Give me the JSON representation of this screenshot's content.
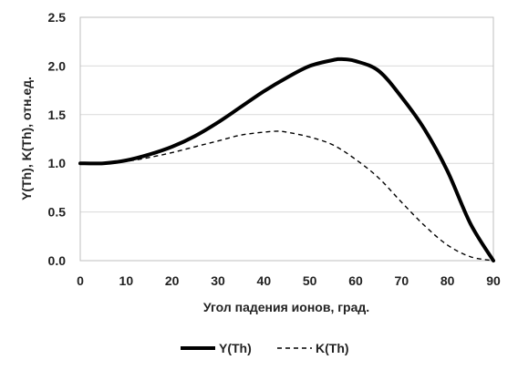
{
  "chart_data": {
    "type": "line",
    "title": "",
    "xlabel": "Угол падения ионов, град.",
    "ylabel": "Y(Th), K(Th), отн.ед.",
    "xlim": [
      0,
      90
    ],
    "ylim": [
      0,
      2.5
    ],
    "x_ticks": [
      "0",
      "10",
      "20",
      "30",
      "40",
      "50",
      "60",
      "70",
      "80",
      "90"
    ],
    "y_ticks": [
      "0.0",
      "0.5",
      "1.0",
      "1.5",
      "2.0",
      "2.5"
    ],
    "grid": "horizontal",
    "legend": "bottom",
    "series": [
      {
        "name": "Y(Th)",
        "style": "solid",
        "color": "#000000",
        "x": [
          0,
          5,
          10,
          15,
          20,
          25,
          30,
          35,
          40,
          45,
          50,
          55,
          57,
          60,
          65,
          70,
          75,
          80,
          85,
          90
        ],
        "y": [
          1.0,
          1.0,
          1.03,
          1.09,
          1.17,
          1.28,
          1.42,
          1.58,
          1.74,
          1.88,
          2.0,
          2.06,
          2.07,
          2.05,
          1.95,
          1.68,
          1.35,
          0.92,
          0.38,
          0.0
        ]
      },
      {
        "name": "K(Th)",
        "style": "dashed",
        "color": "#000000",
        "x": [
          0,
          5,
          10,
          15,
          20,
          25,
          30,
          35,
          40,
          43,
          45,
          50,
          55,
          60,
          65,
          70,
          75,
          80,
          85,
          90
        ],
        "y": [
          1.0,
          1.0,
          1.02,
          1.06,
          1.11,
          1.17,
          1.23,
          1.29,
          1.32,
          1.33,
          1.32,
          1.27,
          1.19,
          1.04,
          0.85,
          0.6,
          0.36,
          0.16,
          0.04,
          0.0
        ]
      }
    ]
  }
}
